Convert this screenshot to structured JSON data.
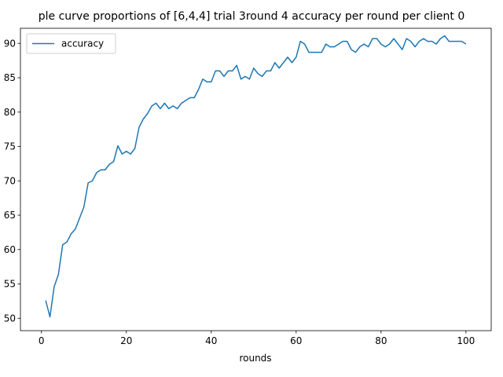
{
  "chart_data": {
    "type": "line",
    "title": "ple curve proportions of [6,4,4] trial 3round 4 accuracy per round per client 0",
    "xlabel": "rounds",
    "ylabel": "",
    "xlim": [
      -4.95,
      105.95
    ],
    "ylim": [
      48.2,
      92.2
    ],
    "xticks": [
      0,
      20,
      40,
      60,
      80,
      100
    ],
    "yticks": [
      50,
      55,
      60,
      65,
      70,
      75,
      80,
      85,
      90
    ],
    "legend_position": "upper-left",
    "grid": false,
    "series": [
      {
        "name": "accuracy",
        "color": "#1f77b4",
        "x": [
          1,
          2,
          3,
          4,
          5,
          6,
          7,
          8,
          9,
          10,
          11,
          12,
          13,
          14,
          15,
          16,
          17,
          18,
          19,
          20,
          21,
          22,
          23,
          24,
          25,
          26,
          27,
          28,
          29,
          30,
          31,
          32,
          33,
          34,
          35,
          36,
          37,
          38,
          39,
          40,
          41,
          42,
          43,
          44,
          45,
          46,
          47,
          48,
          49,
          50,
          51,
          52,
          53,
          54,
          55,
          56,
          57,
          58,
          59,
          60,
          61,
          62,
          63,
          64,
          65,
          66,
          67,
          68,
          69,
          70,
          71,
          72,
          73,
          74,
          75,
          76,
          77,
          78,
          79,
          80,
          81,
          82,
          83,
          84,
          85,
          86,
          87,
          88,
          89,
          90,
          91,
          92,
          93,
          94,
          95,
          96,
          97,
          98,
          99,
          100
        ],
        "values": [
          52.6,
          50.2,
          54.6,
          56.4,
          60.7,
          61.1,
          62.3,
          63.0,
          64.6,
          66.2,
          69.7,
          70.0,
          71.2,
          71.6,
          71.6,
          72.4,
          72.8,
          75.1,
          73.9,
          74.3,
          73.9,
          74.7,
          77.8,
          79.0,
          79.8,
          80.9,
          81.3,
          80.5,
          81.3,
          80.5,
          80.9,
          80.5,
          81.3,
          81.7,
          82.1,
          82.1,
          83.3,
          84.8,
          84.4,
          84.4,
          86.0,
          86.0,
          85.2,
          86.0,
          86.0,
          86.8,
          84.8,
          85.2,
          84.8,
          86.4,
          85.6,
          85.2,
          86.0,
          86.0,
          87.2,
          86.4,
          87.2,
          88.0,
          87.2,
          88.0,
          90.3,
          89.9,
          88.7,
          88.7,
          88.7,
          88.7,
          89.9,
          89.5,
          89.5,
          89.9,
          90.3,
          90.3,
          89.1,
          88.7,
          89.5,
          89.9,
          89.5,
          90.7,
          90.7,
          89.9,
          89.5,
          89.9,
          90.7,
          89.9,
          89.1,
          90.7,
          90.3,
          89.5,
          90.3,
          90.7,
          90.3,
          90.3,
          89.9,
          90.7,
          91.1,
          90.3,
          90.3,
          90.3,
          90.3,
          89.9
        ]
      }
    ]
  }
}
